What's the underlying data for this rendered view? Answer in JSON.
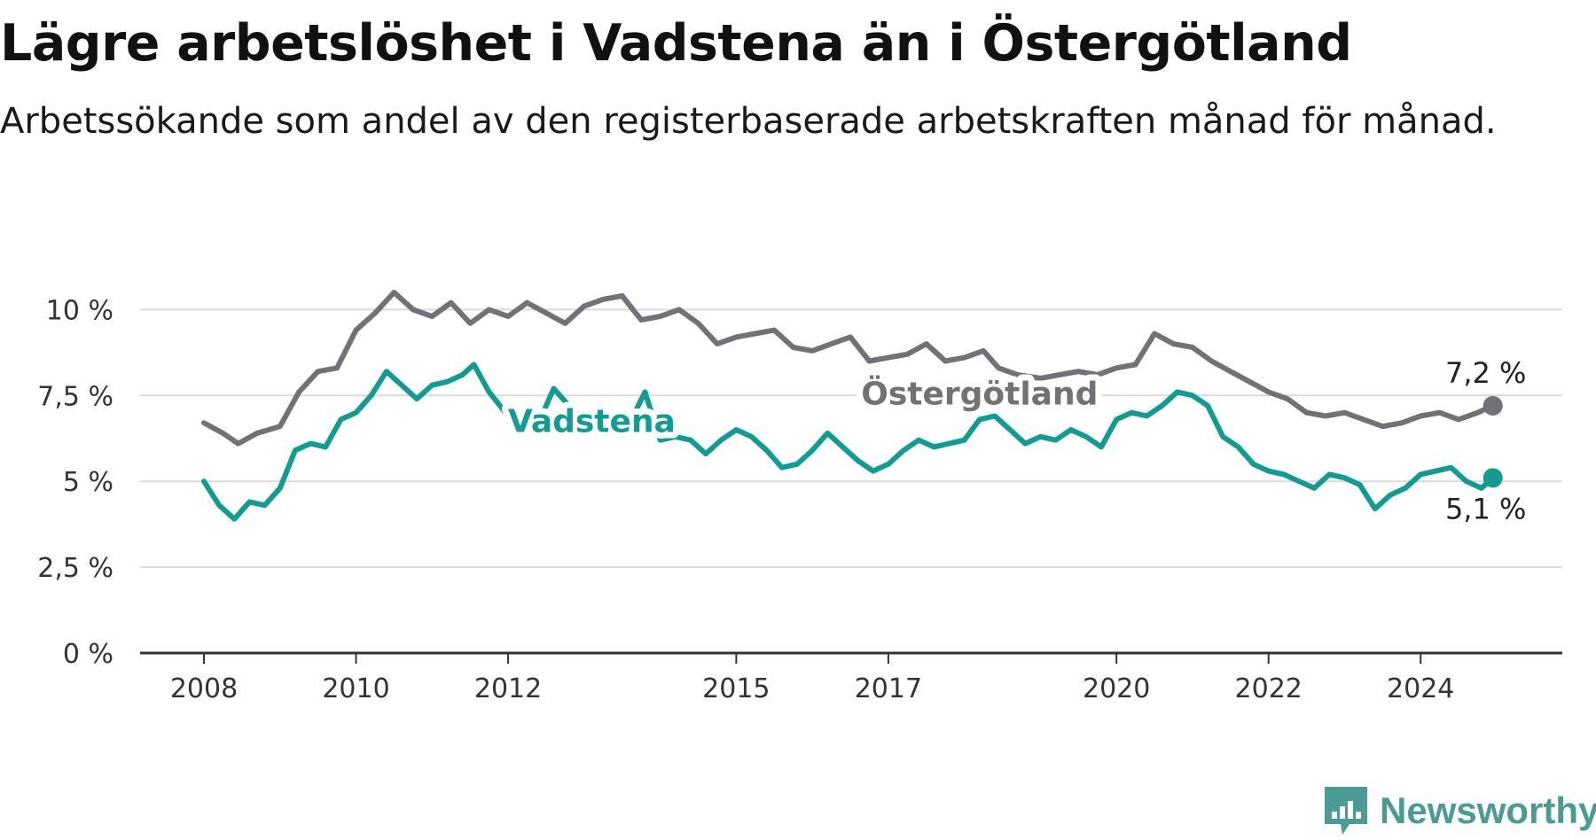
{
  "header": {
    "title": "Lägre arbetslöshet i Vadstena än i Östergötland",
    "subtitle": "Arbetssökande som andel av den registerbaserade arbetskraften månad för månad."
  },
  "brand": {
    "name": "Newsworthy",
    "icon": "newsworthy-logo-icon"
  },
  "colors": {
    "ostergotland": "#727176",
    "vadstena": "#119c92",
    "grid": "#d9d9d9",
    "axis": "#333333"
  },
  "chart_data": {
    "type": "line",
    "x_axis": {
      "ticks": [
        "2008",
        "2010",
        "2012",
        "2015",
        "2017",
        "2020",
        "2022",
        "2024"
      ],
      "range": [
        2008.0,
        2025.0
      ]
    },
    "y_axis": {
      "ticks": [
        "0 %",
        "2,5 %",
        "5 %",
        "7,5 %",
        "10 %"
      ],
      "values": [
        0,
        2.5,
        5,
        7.5,
        10
      ],
      "range": [
        0,
        10.5
      ]
    },
    "grid": true,
    "series": [
      {
        "name": "Östergötland",
        "end_label": "7,2 %",
        "points": [
          [
            2008.0,
            6.7
          ],
          [
            2008.25,
            6.4
          ],
          [
            2008.45,
            6.1
          ],
          [
            2008.7,
            6.4
          ],
          [
            2009.0,
            6.6
          ],
          [
            2009.25,
            7.6
          ],
          [
            2009.5,
            8.2
          ],
          [
            2009.75,
            8.3
          ],
          [
            2010.0,
            9.4
          ],
          [
            2010.25,
            9.9
          ],
          [
            2010.5,
            10.5
          ],
          [
            2010.75,
            10.0
          ],
          [
            2011.0,
            9.8
          ],
          [
            2011.25,
            10.2
          ],
          [
            2011.5,
            9.6
          ],
          [
            2011.75,
            10.0
          ],
          [
            2012.0,
            9.8
          ],
          [
            2012.25,
            10.2
          ],
          [
            2012.5,
            9.9
          ],
          [
            2012.75,
            9.6
          ],
          [
            2013.0,
            10.1
          ],
          [
            2013.25,
            10.3
          ],
          [
            2013.5,
            10.4
          ],
          [
            2013.75,
            9.7
          ],
          [
            2014.0,
            9.8
          ],
          [
            2014.25,
            10.0
          ],
          [
            2014.5,
            9.6
          ],
          [
            2014.75,
            9.0
          ],
          [
            2015.0,
            9.2
          ],
          [
            2015.25,
            9.3
          ],
          [
            2015.5,
            9.4
          ],
          [
            2015.75,
            8.9
          ],
          [
            2016.0,
            8.8
          ],
          [
            2016.25,
            9.0
          ],
          [
            2016.5,
            9.2
          ],
          [
            2016.75,
            8.5
          ],
          [
            2017.0,
            8.6
          ],
          [
            2017.25,
            8.7
          ],
          [
            2017.5,
            9.0
          ],
          [
            2017.75,
            8.5
          ],
          [
            2018.0,
            8.6
          ],
          [
            2018.25,
            8.8
          ],
          [
            2018.45,
            8.3
          ],
          [
            2018.7,
            8.1
          ],
          [
            2019.0,
            8.0
          ],
          [
            2019.25,
            8.1
          ],
          [
            2019.5,
            8.2
          ],
          [
            2019.75,
            8.1
          ],
          [
            2020.0,
            8.3
          ],
          [
            2020.25,
            8.4
          ],
          [
            2020.5,
            9.3
          ],
          [
            2020.75,
            9.0
          ],
          [
            2021.0,
            8.9
          ],
          [
            2021.25,
            8.5
          ],
          [
            2021.5,
            8.2
          ],
          [
            2021.75,
            7.9
          ],
          [
            2022.0,
            7.6
          ],
          [
            2022.25,
            7.4
          ],
          [
            2022.5,
            7.0
          ],
          [
            2022.75,
            6.9
          ],
          [
            2023.0,
            7.0
          ],
          [
            2023.25,
            6.8
          ],
          [
            2023.5,
            6.6
          ],
          [
            2023.75,
            6.7
          ],
          [
            2024.0,
            6.9
          ],
          [
            2024.25,
            7.0
          ],
          [
            2024.5,
            6.8
          ],
          [
            2024.75,
            7.0
          ],
          [
            2024.95,
            7.2
          ]
        ]
      },
      {
        "name": "Vadstena",
        "end_label": "5,1 %",
        "points": [
          [
            2008.0,
            5.0
          ],
          [
            2008.2,
            4.3
          ],
          [
            2008.4,
            3.9
          ],
          [
            2008.6,
            4.4
          ],
          [
            2008.8,
            4.3
          ],
          [
            2009.0,
            4.8
          ],
          [
            2009.2,
            5.9
          ],
          [
            2009.4,
            6.1
          ],
          [
            2009.6,
            6.0
          ],
          [
            2009.8,
            6.8
          ],
          [
            2010.0,
            7.0
          ],
          [
            2010.2,
            7.5
          ],
          [
            2010.4,
            8.2
          ],
          [
            2010.6,
            7.8
          ],
          [
            2010.8,
            7.4
          ],
          [
            2011.0,
            7.8
          ],
          [
            2011.2,
            7.9
          ],
          [
            2011.4,
            8.1
          ],
          [
            2011.55,
            8.4
          ],
          [
            2011.75,
            7.6
          ],
          [
            2012.0,
            6.9
          ],
          [
            2012.2,
            7.0
          ],
          [
            2012.4,
            6.7
          ],
          [
            2012.6,
            7.7
          ],
          [
            2012.8,
            7.2
          ],
          [
            2013.0,
            6.8
          ],
          [
            2013.2,
            6.9
          ],
          [
            2013.4,
            6.8
          ],
          [
            2013.6,
            6.7
          ],
          [
            2013.8,
            7.6
          ],
          [
            2014.0,
            6.2
          ],
          [
            2014.2,
            6.3
          ],
          [
            2014.4,
            6.2
          ],
          [
            2014.6,
            5.8
          ],
          [
            2014.8,
            6.2
          ],
          [
            2015.0,
            6.5
          ],
          [
            2015.2,
            6.3
          ],
          [
            2015.4,
            5.9
          ],
          [
            2015.6,
            5.4
          ],
          [
            2015.8,
            5.5
          ],
          [
            2016.0,
            5.9
          ],
          [
            2016.2,
            6.4
          ],
          [
            2016.4,
            6.0
          ],
          [
            2016.6,
            5.6
          ],
          [
            2016.8,
            5.3
          ],
          [
            2017.0,
            5.5
          ],
          [
            2017.2,
            5.9
          ],
          [
            2017.4,
            6.2
          ],
          [
            2017.6,
            6.0
          ],
          [
            2017.8,
            6.1
          ],
          [
            2018.0,
            6.2
          ],
          [
            2018.2,
            6.8
          ],
          [
            2018.4,
            6.9
          ],
          [
            2018.6,
            6.5
          ],
          [
            2018.8,
            6.1
          ],
          [
            2019.0,
            6.3
          ],
          [
            2019.2,
            6.2
          ],
          [
            2019.4,
            6.5
          ],
          [
            2019.6,
            6.3
          ],
          [
            2019.8,
            6.0
          ],
          [
            2020.0,
            6.8
          ],
          [
            2020.2,
            7.0
          ],
          [
            2020.4,
            6.9
          ],
          [
            2020.6,
            7.2
          ],
          [
            2020.8,
            7.6
          ],
          [
            2021.0,
            7.5
          ],
          [
            2021.2,
            7.2
          ],
          [
            2021.4,
            6.3
          ],
          [
            2021.6,
            6.0
          ],
          [
            2021.8,
            5.5
          ],
          [
            2022.0,
            5.3
          ],
          [
            2022.2,
            5.2
          ],
          [
            2022.4,
            5.0
          ],
          [
            2022.6,
            4.8
          ],
          [
            2022.8,
            5.2
          ],
          [
            2023.0,
            5.1
          ],
          [
            2023.2,
            4.9
          ],
          [
            2023.4,
            4.2
          ],
          [
            2023.6,
            4.6
          ],
          [
            2023.8,
            4.8
          ],
          [
            2024.0,
            5.2
          ],
          [
            2024.2,
            5.3
          ],
          [
            2024.4,
            5.4
          ],
          [
            2024.6,
            5.0
          ],
          [
            2024.8,
            4.8
          ],
          [
            2024.95,
            5.1
          ]
        ]
      }
    ]
  }
}
